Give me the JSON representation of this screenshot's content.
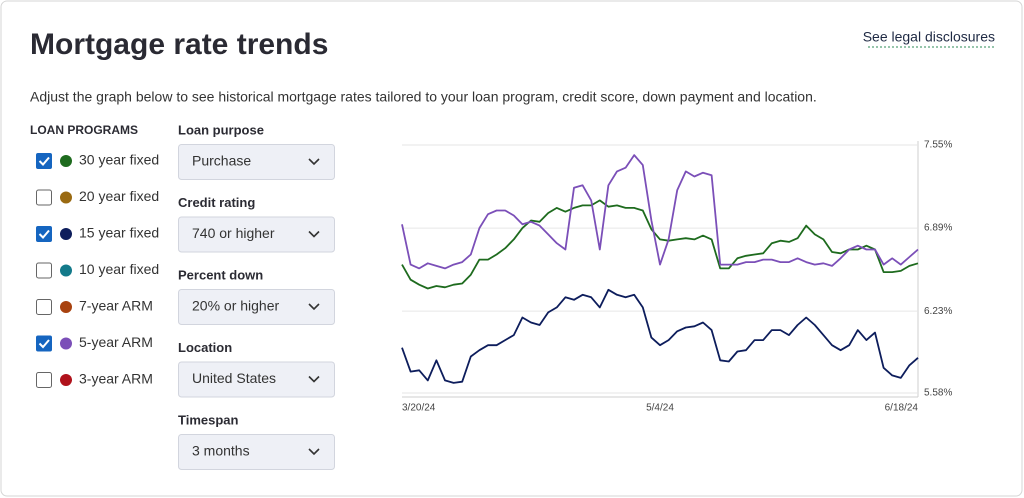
{
  "header": {
    "title": "Mortgage rate trends",
    "link": "See legal disclosures",
    "description": "Adjust the graph below to see historical mortgage rates tailored to your loan program, credit score, down payment and location."
  },
  "loan_programs": {
    "heading": "LOAN PROGRAMS",
    "items": [
      {
        "name": "30 year fixed",
        "color": "#1e6b1e",
        "checked": true
      },
      {
        "name": "20 year fixed",
        "color": "#9a6a12",
        "checked": false
      },
      {
        "name": "15 year fixed",
        "color": "#0d1d5c",
        "checked": true
      },
      {
        "name": "10 year fixed",
        "color": "#137a8a",
        "checked": false
      },
      {
        "name": "7-year ARM",
        "color": "#a8420f",
        "checked": false
      },
      {
        "name": "5-year ARM",
        "color": "#7b4fb8",
        "checked": true
      },
      {
        "name": "3-year ARM",
        "color": "#b0121b",
        "checked": false
      }
    ]
  },
  "controls": [
    {
      "label": "Loan purpose",
      "value": "Purchase"
    },
    {
      "label": "Credit rating",
      "value": "740 or higher"
    },
    {
      "label": "Percent down",
      "value": "20% or higher"
    },
    {
      "label": "Location",
      "value": "United States"
    },
    {
      "label": "Timespan",
      "value": "3 months"
    }
  ],
  "chart_data": {
    "type": "line",
    "categories": [
      "3/20/24",
      null,
      null,
      null,
      null,
      null,
      null,
      null,
      null,
      null,
      null,
      null,
      null,
      null,
      null,
      null,
      null,
      null,
      null,
      null,
      null,
      null,
      null,
      null,
      null,
      null,
      null,
      null,
      null,
      null,
      "5/4/24",
      null,
      null,
      null,
      null,
      null,
      null,
      null,
      null,
      null,
      null,
      null,
      null,
      null,
      null,
      null,
      null,
      null,
      null,
      null,
      null,
      null,
      null,
      null,
      null,
      null,
      null,
      null,
      null,
      null,
      "6/18/24"
    ],
    "series": [
      {
        "color": "#1e6b1e",
        "values": [
          6.6,
          6.48,
          6.44,
          6.41,
          6.43,
          6.42,
          6.44,
          6.45,
          6.52,
          6.64,
          6.64,
          6.68,
          6.73,
          6.8,
          6.89,
          6.95,
          6.94,
          7.01,
          7.05,
          7.02,
          7.05,
          7.07,
          7.07,
          7.11,
          7.06,
          7.07,
          7.05,
          7.05,
          7.03,
          6.88,
          6.8,
          6.79,
          6.8,
          6.81,
          6.8,
          6.83,
          6.8,
          6.57,
          6.57,
          6.65,
          6.67,
          6.68,
          6.69,
          6.77,
          6.79,
          6.78,
          6.81,
          6.91,
          6.84,
          6.8,
          6.7,
          6.69,
          6.72,
          6.72,
          6.75,
          6.72,
          6.54,
          6.54,
          6.55,
          6.59,
          6.61
        ]
      },
      {
        "color": "#0d1d5c",
        "values": [
          5.94,
          5.75,
          5.76,
          5.68,
          5.84,
          5.68,
          5.66,
          5.67,
          5.87,
          5.92,
          5.96,
          5.96,
          6.0,
          6.04,
          6.18,
          6.14,
          6.12,
          6.22,
          6.26,
          6.34,
          6.32,
          6.36,
          6.34,
          6.26,
          6.4,
          6.36,
          6.34,
          6.36,
          6.26,
          6.02,
          5.96,
          6.0,
          6.07,
          6.1,
          6.11,
          6.14,
          6.08,
          5.84,
          5.83,
          5.91,
          5.92,
          6.0,
          6.0,
          6.08,
          6.08,
          6.04,
          6.12,
          6.18,
          6.12,
          6.04,
          5.96,
          5.92,
          5.96,
          6.08,
          6.0,
          6.06,
          5.78,
          5.72,
          5.7,
          5.8,
          5.86
        ]
      },
      {
        "color": "#7b4fb8",
        "values": [
          6.92,
          6.6,
          6.57,
          6.61,
          6.59,
          6.57,
          6.6,
          6.62,
          6.68,
          6.89,
          7.0,
          7.03,
          7.03,
          6.99,
          6.92,
          6.94,
          6.91,
          6.84,
          6.77,
          6.72,
          7.21,
          7.23,
          7.11,
          6.72,
          7.23,
          7.34,
          7.37,
          7.47,
          7.39,
          6.95,
          6.6,
          6.8,
          7.19,
          7.34,
          7.3,
          7.33,
          7.31,
          6.6,
          6.6,
          6.6,
          6.62,
          6.62,
          6.64,
          6.64,
          6.62,
          6.62,
          6.65,
          6.62,
          6.6,
          6.61,
          6.59,
          6.65,
          6.72,
          6.75,
          6.72,
          6.72,
          6.6,
          6.65,
          6.6,
          6.66,
          6.72
        ]
      }
    ],
    "ylim": [
      5.58,
      7.55
    ],
    "yticks": [
      {
        "value": 5.58,
        "label": "5.58%"
      },
      {
        "value": 6.23,
        "label": "6.23%"
      },
      {
        "value": 6.89,
        "label": "6.89%"
      },
      {
        "value": 7.55,
        "label": "7.55%"
      }
    ],
    "grid": true
  }
}
